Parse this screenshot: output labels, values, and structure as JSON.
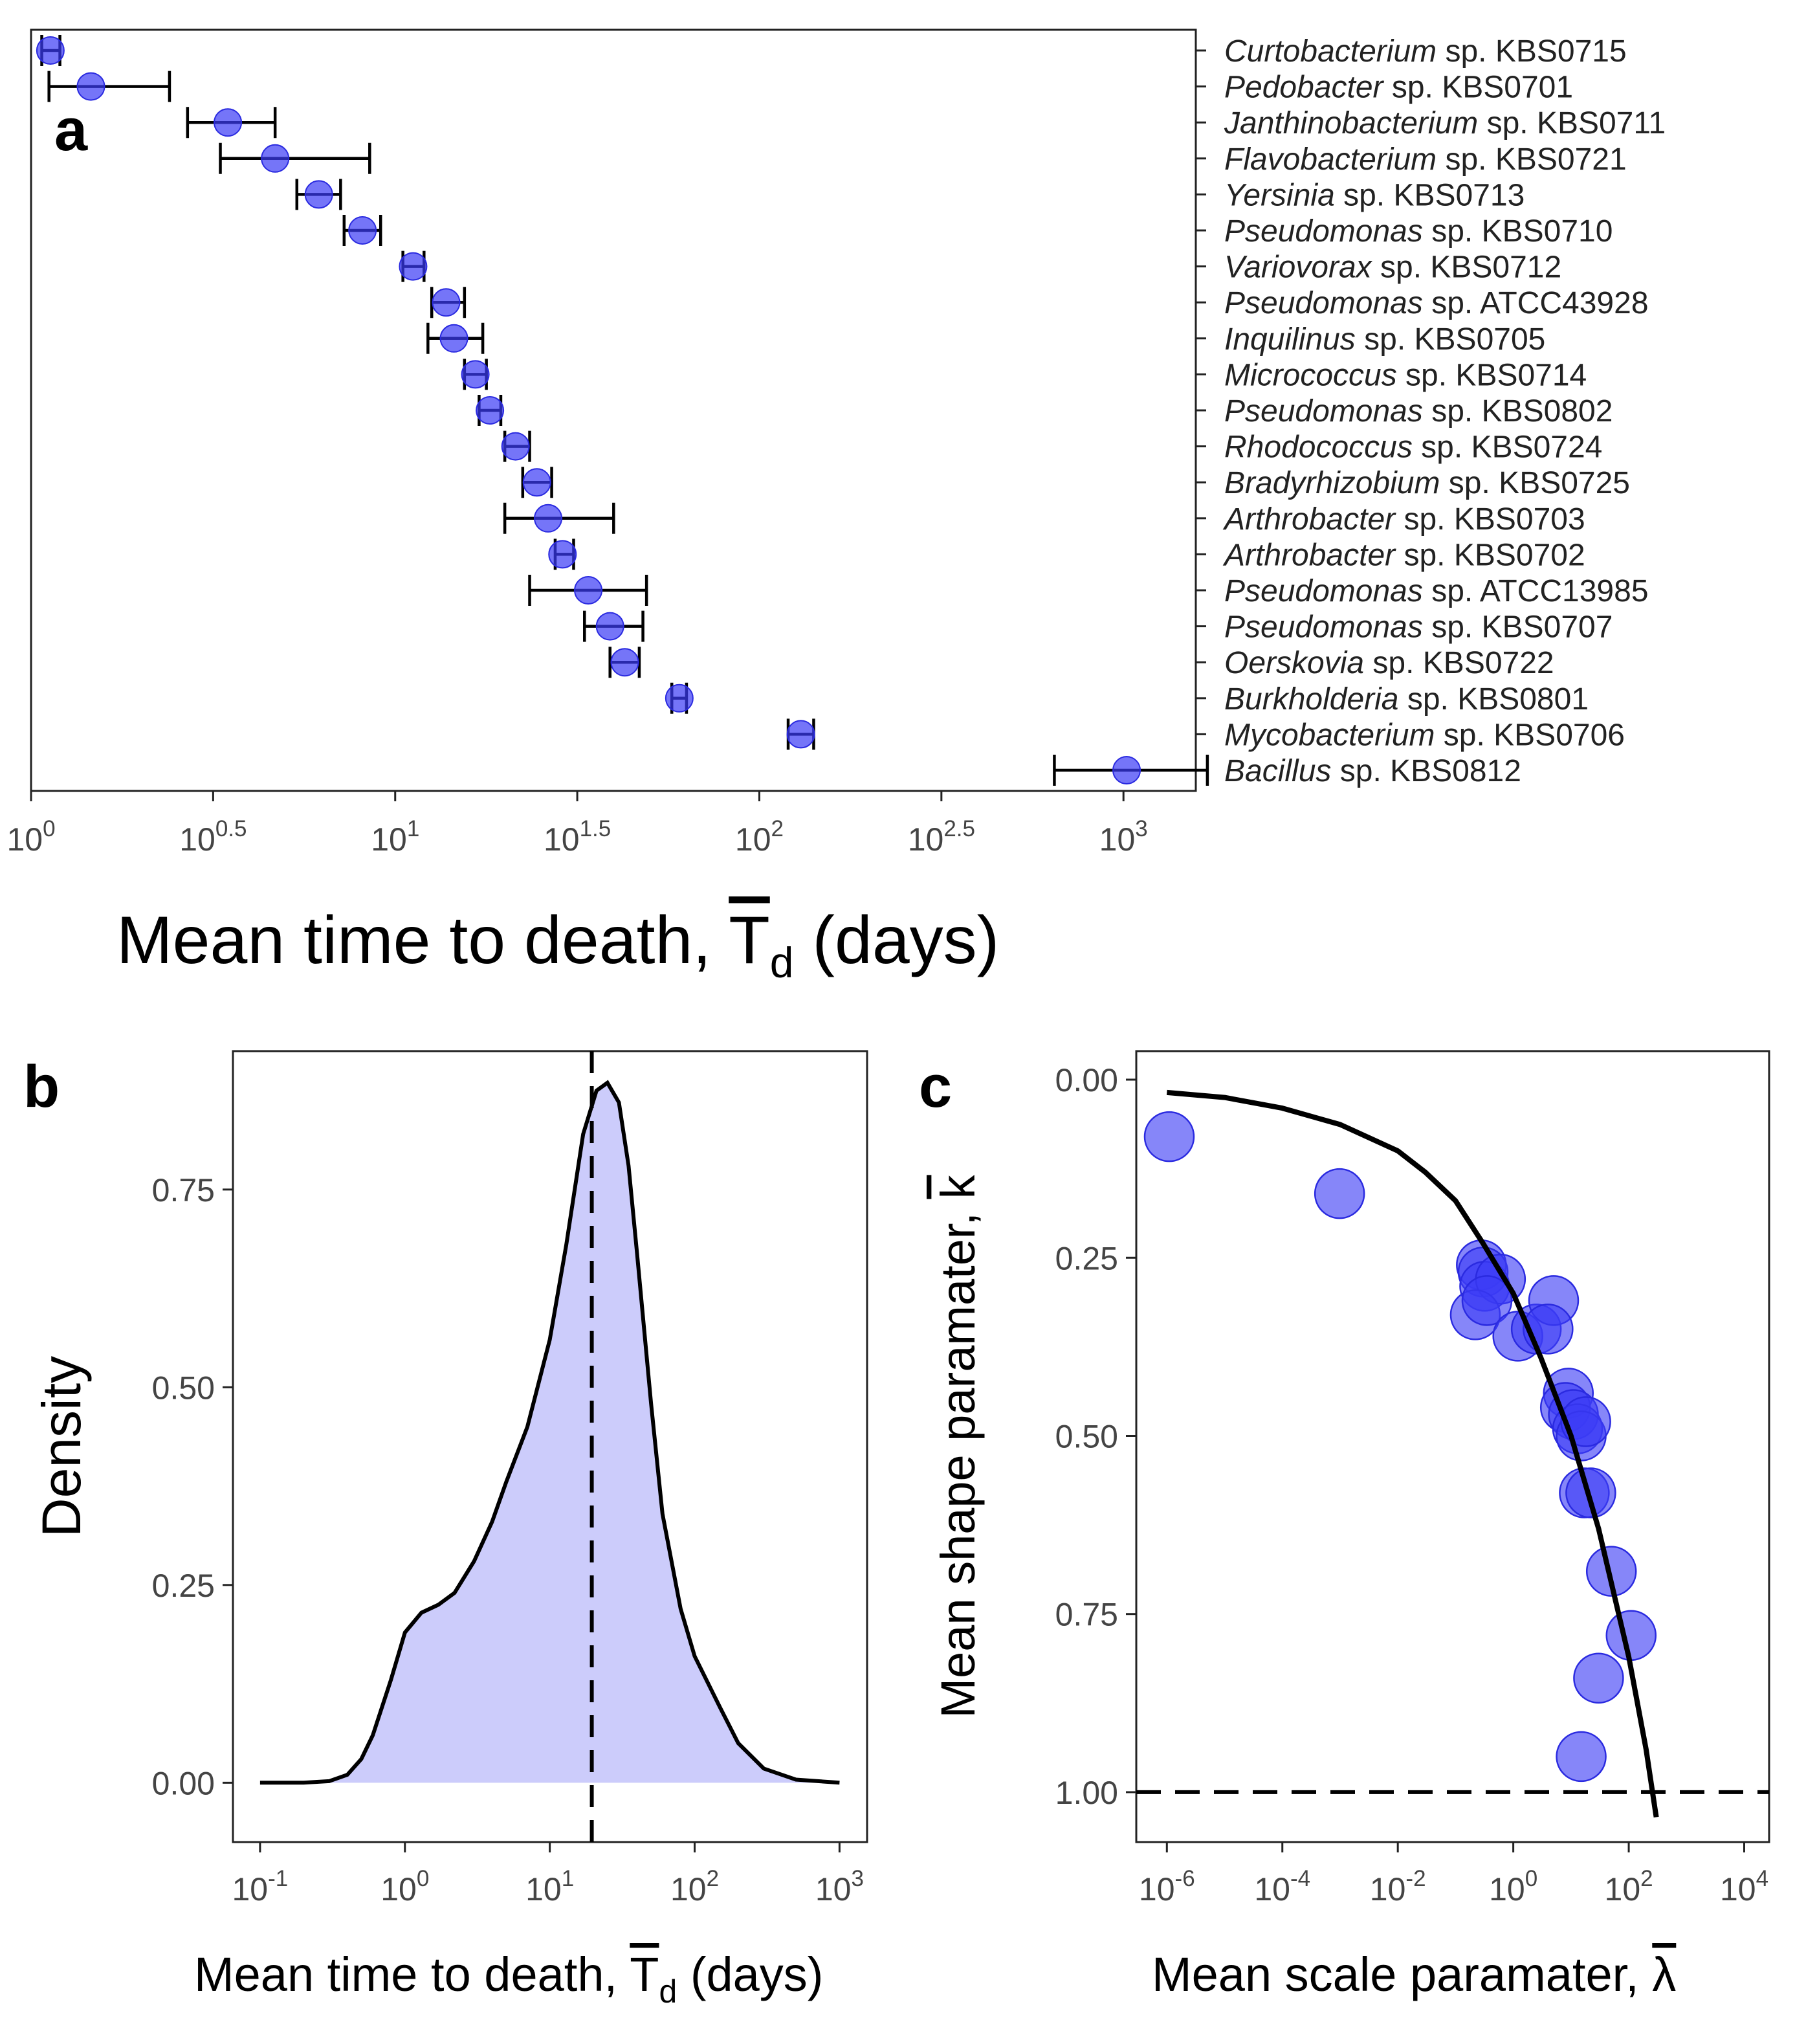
{
  "colors": {
    "points": "#3b3bf5",
    "point_outline": "#2a2ae0",
    "density_fill": "#ccccfb",
    "lines": "#000000",
    "tick_text": "#444444"
  },
  "chart_data": [
    {
      "panel": "a",
      "type": "scatter",
      "x_scale": "log10",
      "xlim": [
        1,
        1580
      ],
      "xticks": [
        {
          "value": 1,
          "base": "10",
          "exp": "0"
        },
        {
          "value": 3.1623,
          "base": "10",
          "exp": "0.5"
        },
        {
          "value": 10,
          "base": "10",
          "exp": "1"
        },
        {
          "value": 31.623,
          "base": "10",
          "exp": "1.5"
        },
        {
          "value": 100,
          "base": "10",
          "exp": "2"
        },
        {
          "value": 316.23,
          "base": "10",
          "exp": "2.5"
        },
        {
          "value": 1000,
          "base": "10",
          "exp": "3"
        }
      ],
      "xlabel": {
        "main": "Mean time to death, ",
        "symbol": "T",
        "sub": "d",
        "tail": " (days)"
      },
      "categories": [
        {
          "genus": "Curtobacterium",
          "strain": " sp. KBS0715"
        },
        {
          "genus": "Pedobacter",
          "strain": " sp. KBS0701"
        },
        {
          "genus": "Janthinobacterium",
          "strain": " sp. KBS0711"
        },
        {
          "genus": "Flavobacterium",
          "strain": " sp. KBS0721"
        },
        {
          "genus": "Yersinia",
          "strain": " sp. KBS0713"
        },
        {
          "genus": "Pseudomonas",
          "strain": " sp. KBS0710"
        },
        {
          "genus": "Variovorax",
          "strain": " sp. KBS0712"
        },
        {
          "genus": "Pseudomonas",
          "strain": " sp. ATCC43928"
        },
        {
          "genus": "Inquilinus",
          "strain": " sp. KBS0705"
        },
        {
          "genus": "Micrococcus",
          "strain": " sp. KBS0714"
        },
        {
          "genus": "Pseudomonas",
          "strain": " sp. KBS0802"
        },
        {
          "genus": "Rhodococcus",
          "strain": " sp. KBS0724"
        },
        {
          "genus": "Bradyrhizobium",
          "strain": " sp. KBS0725"
        },
        {
          "genus": "Arthrobacter",
          "strain": " sp. KBS0703"
        },
        {
          "genus": "Arthrobacter",
          "strain": " sp. KBS0702"
        },
        {
          "genus": "Pseudomonas",
          "strain": " sp. ATCC13985"
        },
        {
          "genus": "Pseudomonas",
          "strain": " sp. KBS0707"
        },
        {
          "genus": "Oerskovia",
          "strain": " sp. KBS0722"
        },
        {
          "genus": "Burkholderia",
          "strain": " sp. KBS0801"
        },
        {
          "genus": "Mycobacterium",
          "strain": " sp. KBS0706"
        },
        {
          "genus": "Bacillus",
          "strain": " sp. KBS0812"
        }
      ],
      "values": [
        1.13,
        1.46,
        3.47,
        4.68,
        6.17,
        8.13,
        11.2,
        13.8,
        14.5,
        16.6,
        18.2,
        21.4,
        24.5,
        26.3,
        28.8,
        33.9,
        38.9,
        42.7,
        60.3,
        130,
        1020
      ],
      "err_low": [
        1.07,
        1.12,
        2.69,
        3.31,
        5.37,
        7.24,
        10.5,
        12.6,
        12.3,
        15.5,
        17.0,
        20.0,
        22.4,
        20.0,
        27.5,
        23.4,
        33.1,
        38.9,
        57.5,
        120,
        646
      ],
      "err_high": [
        1.2,
        2.4,
        4.68,
        8.51,
        7.08,
        9.12,
        12.0,
        15.5,
        17.4,
        17.8,
        19.5,
        23.4,
        26.9,
        39.8,
        30.9,
        49.0,
        47.9,
        46.8,
        63.1,
        141,
        1700
      ]
    },
    {
      "panel": "b",
      "type": "area",
      "x_scale": "log10",
      "xlim": [
        0.065,
        1550
      ],
      "ylim": [
        -0.075,
        0.925
      ],
      "ylabel": "Density",
      "xlabel": {
        "main": "Mean time to death, ",
        "symbol": "T",
        "sub": "d",
        "tail": " (days)"
      },
      "xticks": [
        {
          "value": 0.1,
          "base": "10",
          "exp": "-1"
        },
        {
          "value": 1,
          "base": "10",
          "exp": "0"
        },
        {
          "value": 10,
          "base": "10",
          "exp": "1"
        },
        {
          "value": 100,
          "base": "10",
          "exp": "2"
        },
        {
          "value": 1000,
          "base": "10",
          "exp": "3"
        }
      ],
      "yticks": [
        "0.00",
        "0.25",
        "0.50",
        "0.75"
      ],
      "ytick_values": [
        0,
        0.25,
        0.5,
        0.75
      ],
      "x": [
        0.1,
        0.2,
        0.3,
        0.4,
        0.5,
        0.6,
        0.8,
        1.0,
        1.3,
        1.7,
        2.2,
        3.0,
        4.0,
        5.0,
        7.0,
        10,
        13,
        17,
        21,
        25,
        30,
        35,
        40,
        50,
        60,
        80,
        100,
        150,
        200,
        300,
        500,
        1000
      ],
      "values": [
        0.0,
        0.0,
        0.002,
        0.01,
        0.03,
        0.06,
        0.13,
        0.19,
        0.215,
        0.225,
        0.24,
        0.28,
        0.33,
        0.38,
        0.45,
        0.56,
        0.68,
        0.82,
        0.875,
        0.885,
        0.86,
        0.78,
        0.67,
        0.48,
        0.34,
        0.22,
        0.16,
        0.095,
        0.05,
        0.018,
        0.004,
        0.0
      ],
      "vline": 19.5,
      "vline_style": "dashed"
    },
    {
      "panel": "c",
      "type": "scatter",
      "x_scale": "log10",
      "y_reversed": true,
      "xlim": [
        2.95e-07,
        27000
      ],
      "ylim": [
        -0.04,
        1.07
      ],
      "xlabel": {
        "main": "Mean scale paramater, ",
        "symbol": "λ"
      },
      "ylabel": {
        "main": "Mean shape paramater, ",
        "symbol": "k"
      },
      "xticks": [
        {
          "value": 1e-06,
          "base": "10",
          "exp": "-6"
        },
        {
          "value": 0.0001,
          "base": "10",
          "exp": "-4"
        },
        {
          "value": 0.01,
          "base": "10",
          "exp": "-2"
        },
        {
          "value": 1,
          "base": "10",
          "exp": "0"
        },
        {
          "value": 100,
          "base": "10",
          "exp": "2"
        },
        {
          "value": 10000,
          "base": "10",
          "exp": "4"
        }
      ],
      "yticks": [
        "0.00",
        "0.25",
        "0.50",
        "0.75",
        "1.00"
      ],
      "ytick_values": [
        0,
        0.25,
        0.5,
        0.75,
        1
      ],
      "x": [
        1.1e-06,
        0.00098,
        0.28,
        0.3,
        0.32,
        0.6,
        0.22,
        0.35,
        1.2,
        2.5,
        5.0,
        4.0,
        9.0,
        8.0,
        11.0,
        13.0,
        15.0,
        18.0,
        17.0,
        22.0,
        50.0,
        110,
        30.0,
        15.0
      ],
      "values": [
        0.08,
        0.16,
        0.26,
        0.27,
        0.29,
        0.28,
        0.33,
        0.31,
        0.36,
        0.35,
        0.31,
        0.35,
        0.44,
        0.46,
        0.47,
        0.49,
        0.5,
        0.48,
        0.58,
        0.58,
        0.69,
        0.78,
        0.84,
        0.95
      ],
      "curve_x": [
        1e-06,
        1e-05,
        0.0001,
        0.001,
        0.01,
        0.03,
        0.1,
        0.3,
        1,
        3,
        10,
        30,
        100,
        200,
        300
      ],
      "curve_y": [
        0.018,
        0.025,
        0.04,
        0.063,
        0.1,
        0.13,
        0.17,
        0.23,
        0.3,
        0.39,
        0.5,
        0.63,
        0.81,
        0.94,
        1.035
      ],
      "hline": 1.0,
      "hline_style": "dashed"
    }
  ],
  "labels": {
    "panel_a": "a",
    "panel_b": "b",
    "panel_c": "c"
  }
}
